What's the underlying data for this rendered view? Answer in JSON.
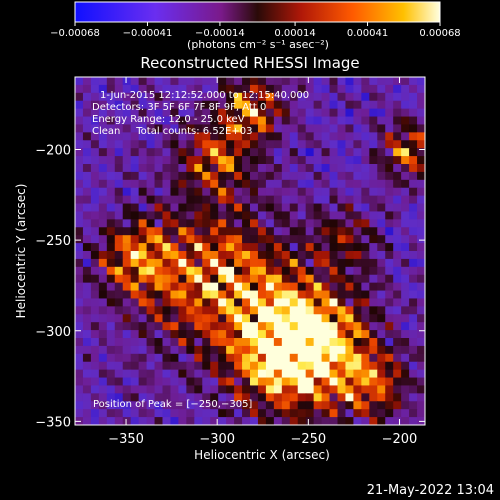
{
  "chart_data": {
    "type": "heatmap",
    "title": "Reconstructed RHESSI Image",
    "xlabel": "Heliocentric X (arcsec)",
    "ylabel": "Heliocentric Y (arcsec)",
    "xlim": [
      -378,
      -186
    ],
    "ylim": [
      -352,
      -160
    ],
    "x_ticks": [
      -350,
      -300,
      -250,
      -200
    ],
    "x_tick_labels": [
      "−350",
      "−300",
      "−250",
      "−200"
    ],
    "y_ticks": [
      -200,
      -250,
      -300,
      -350
    ],
    "y_tick_labels": [
      "−200",
      "−250",
      "−300",
      "−350"
    ],
    "colorbar": {
      "range": [
        -0.00068,
        0.00068
      ],
      "ticks": [
        -0.00068,
        -0.00041,
        -0.00014,
        0.00014,
        0.00041,
        0.00068
      ],
      "tick_labels": [
        "−0.00068",
        "−0.00041",
        "−0.00014",
        "0.00014",
        "0.00041",
        "0.00068"
      ],
      "units_label": "(photons cm⁻² s⁻¹ asec⁻²)"
    },
    "peak": {
      "x": -250,
      "y": -305
    }
  },
  "info": {
    "time": "1-Jun-2015 12:12:52.000 to 12:15:40.000",
    "detectors": "Detectors: 3F 5F 6F 7F 8F 9F, Att 0",
    "energy": "Energy Range: 12.0 - 25.0 keV",
    "clean": "Clean     Total counts: 6.52E+03",
    "peak_label": "Position of Peak = [−250,−305]"
  },
  "footer_date": "21-May-2022 13:04"
}
